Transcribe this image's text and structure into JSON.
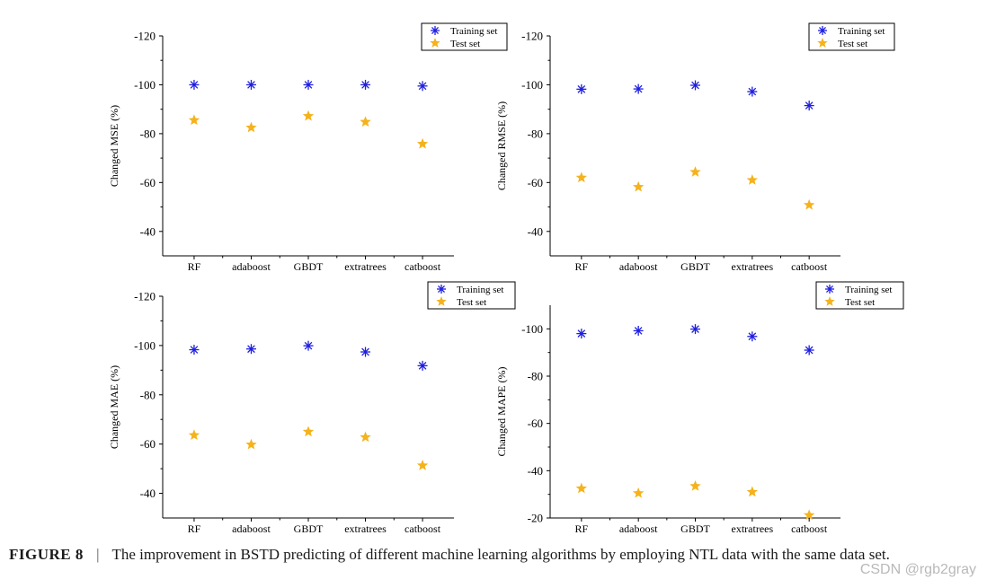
{
  "chart_data": [
    {
      "type": "scatter",
      "ylabel": "Changed MSE (%)",
      "categories": [
        "RF",
        "adaboost",
        "GBDT",
        "extratrees",
        "catboost"
      ],
      "yticks": [
        -120,
        -100,
        -80,
        -60,
        -40
      ],
      "yrange": [
        -120,
        -30
      ],
      "series": [
        {
          "name": "Training set",
          "marker": "asterisk",
          "color": "#1f1fe0",
          "values": [
            -100,
            -100,
            -100,
            -100,
            -99.5
          ]
        },
        {
          "name": "Test set",
          "marker": "star",
          "color": "#f5b21b",
          "values": [
            -85.5,
            -82.5,
            -87.2,
            -84.8,
            -75.8
          ]
        }
      ]
    },
    {
      "type": "scatter",
      "ylabel": "Changed RMSE (%)",
      "categories": [
        "RF",
        "adaboost",
        "GBDT",
        "extratrees",
        "catboost"
      ],
      "yticks": [
        -120,
        -100,
        -80,
        -60,
        -40
      ],
      "yrange": [
        -120,
        -30
      ],
      "series": [
        {
          "name": "Training set",
          "marker": "asterisk",
          "color": "#1f1fe0",
          "values": [
            -98.2,
            -98.3,
            -99.8,
            -97.2,
            -91.5
          ]
        },
        {
          "name": "Test set",
          "marker": "star",
          "color": "#f5b21b",
          "values": [
            -62,
            -58.2,
            -64.3,
            -61,
            -50.8
          ]
        }
      ]
    },
    {
      "type": "scatter",
      "ylabel": "Changed MAE (%)",
      "categories": [
        "RF",
        "adaboost",
        "GBDT",
        "extratrees",
        "catboost"
      ],
      "yticks": [
        -120,
        -100,
        -80,
        -60,
        -40
      ],
      "yrange": [
        -120,
        -30
      ],
      "series": [
        {
          "name": "Training set",
          "marker": "asterisk",
          "color": "#1f1fe0",
          "values": [
            -98.3,
            -98.6,
            -99.9,
            -97.4,
            -91.8
          ]
        },
        {
          "name": "Test set",
          "marker": "star",
          "color": "#f5b21b",
          "values": [
            -63.6,
            -59.8,
            -65,
            -62.8,
            -51.3
          ]
        }
      ]
    },
    {
      "type": "scatter",
      "ylabel": "Changed MAPE (%)",
      "categories": [
        "RF",
        "adaboost",
        "GBDT",
        "extratrees",
        "catboost"
      ],
      "yticks": [
        -100,
        -80,
        -60,
        -40,
        -20
      ],
      "yrange": [
        -110,
        -20
      ],
      "series": [
        {
          "name": "Training set",
          "marker": "asterisk",
          "color": "#1f1fe0",
          "values": [
            -98,
            -99.2,
            -99.9,
            -96.8,
            -91
          ]
        },
        {
          "name": "Test set",
          "marker": "star",
          "color": "#f5b21b",
          "values": [
            -32.5,
            -30.5,
            -33.5,
            -31,
            -21.2
          ]
        }
      ]
    }
  ],
  "caption": {
    "figure_label": "FIGURE 8",
    "separator": "|",
    "text": "The improvement in BSTD predicting of different machine learning algorithms by employing NTL data with the same data set."
  },
  "watermark": "CSDN @rgb2gray"
}
